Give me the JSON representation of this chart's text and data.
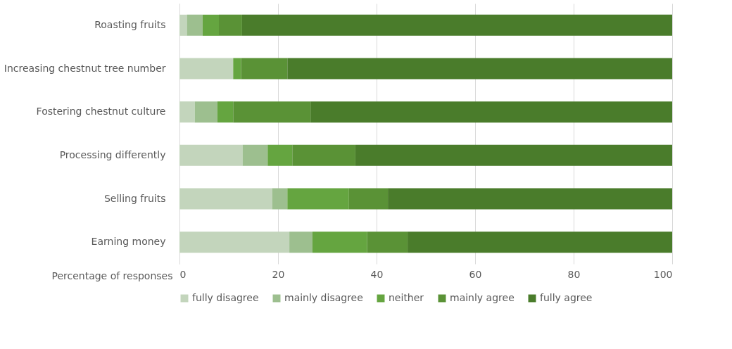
{
  "chart_data": {
    "type": "bar",
    "orientation": "horizontal",
    "stacked": true,
    "xlabel": "Percentage of responses",
    "categories": [
      "Roasting fruits",
      "Increasing chestnut tree number",
      "Fostering chestnut culture",
      "Processing differently",
      "Selling fruits",
      "Earning money"
    ],
    "series": [
      {
        "name": "fully disagree",
        "color": "#c3d5bc",
        "values": [
          1.5,
          10.9,
          3.1,
          12.8,
          18.8,
          22.3
        ]
      },
      {
        "name": "mainly disagree",
        "color": "#9dbf8f",
        "values": [
          3.2,
          0,
          4.6,
          5.1,
          3.1,
          4.7
        ]
      },
      {
        "name": "neither",
        "color": "#65a540",
        "values": [
          3.3,
          1.6,
          3.2,
          5.0,
          12.5,
          11.1
        ]
      },
      {
        "name": "mainly agree",
        "color": "#5a9236",
        "values": [
          4.7,
          9.4,
          15.7,
          12.8,
          7.9,
          8.2
        ]
      },
      {
        "name": "fully agree",
        "color": "#4a7c2b",
        "values": [
          87.3,
          78.1,
          73.4,
          64.3,
          57.7,
          53.7
        ]
      }
    ],
    "xlim": [
      0,
      100
    ],
    "xticks": [
      0,
      20,
      40,
      60,
      80,
      100
    ],
    "grid": "x",
    "legend": "bottom"
  }
}
